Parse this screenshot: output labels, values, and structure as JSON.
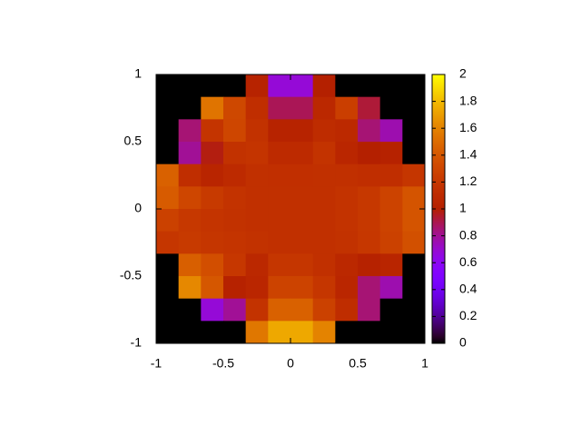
{
  "chart_data": {
    "type": "heatmap",
    "colormap": "gnuplot",
    "xlim": [
      -1,
      1
    ],
    "ylim": [
      -1,
      1
    ],
    "xticks": [
      -1,
      -0.5,
      0,
      0.5,
      1
    ],
    "yticks": [
      -1,
      -0.5,
      0,
      0.5,
      1
    ],
    "zlim": [
      0,
      2
    ],
    "zticks": [
      0,
      0.2,
      0.4,
      0.6,
      0.8,
      1,
      1.2,
      1.4,
      1.6,
      1.8,
      2
    ],
    "z": [
      [
        0,
        0,
        0,
        0,
        1.03,
        0.68,
        0.68,
        1.0,
        0,
        0,
        0,
        0
      ],
      [
        0,
        0,
        1.54,
        1.31,
        1.13,
        0.89,
        0.89,
        1.08,
        1.25,
        0.93,
        0,
        0
      ],
      [
        0,
        0.85,
        1.18,
        1.3,
        1.16,
        1.03,
        1.03,
        1.11,
        1.09,
        0.85,
        0.76,
        0
      ],
      [
        0,
        0.8,
        0.98,
        1.16,
        1.18,
        1.1,
        1.1,
        1.17,
        1.06,
        1.0,
        1.02,
        0
      ],
      [
        1.45,
        1.13,
        1.05,
        1.1,
        1.15,
        1.14,
        1.14,
        1.15,
        1.15,
        1.13,
        1.13,
        1.19
      ],
      [
        1.42,
        1.3,
        1.22,
        1.17,
        1.15,
        1.15,
        1.15,
        1.15,
        1.17,
        1.21,
        1.28,
        1.38
      ],
      [
        1.27,
        1.21,
        1.18,
        1.16,
        1.15,
        1.15,
        1.15,
        1.15,
        1.17,
        1.21,
        1.28,
        1.38
      ],
      [
        1.19,
        1.22,
        1.19,
        1.18,
        1.16,
        1.15,
        1.15,
        1.15,
        1.16,
        1.2,
        1.27,
        1.36
      ],
      [
        0,
        1.44,
        1.35,
        1.2,
        1.08,
        1.19,
        1.19,
        1.15,
        1.08,
        1.02,
        1.05,
        0
      ],
      [
        0,
        1.62,
        1.4,
        1.02,
        1.06,
        1.28,
        1.28,
        1.19,
        1.06,
        0.85,
        0.76,
        0
      ],
      [
        0,
        0,
        0.68,
        0.8,
        1.17,
        1.45,
        1.45,
        1.27,
        1.12,
        0.85,
        0,
        0
      ],
      [
        0,
        0,
        0,
        0,
        1.55,
        1.74,
        1.74,
        1.6,
        0,
        0,
        0,
        0
      ]
    ]
  }
}
